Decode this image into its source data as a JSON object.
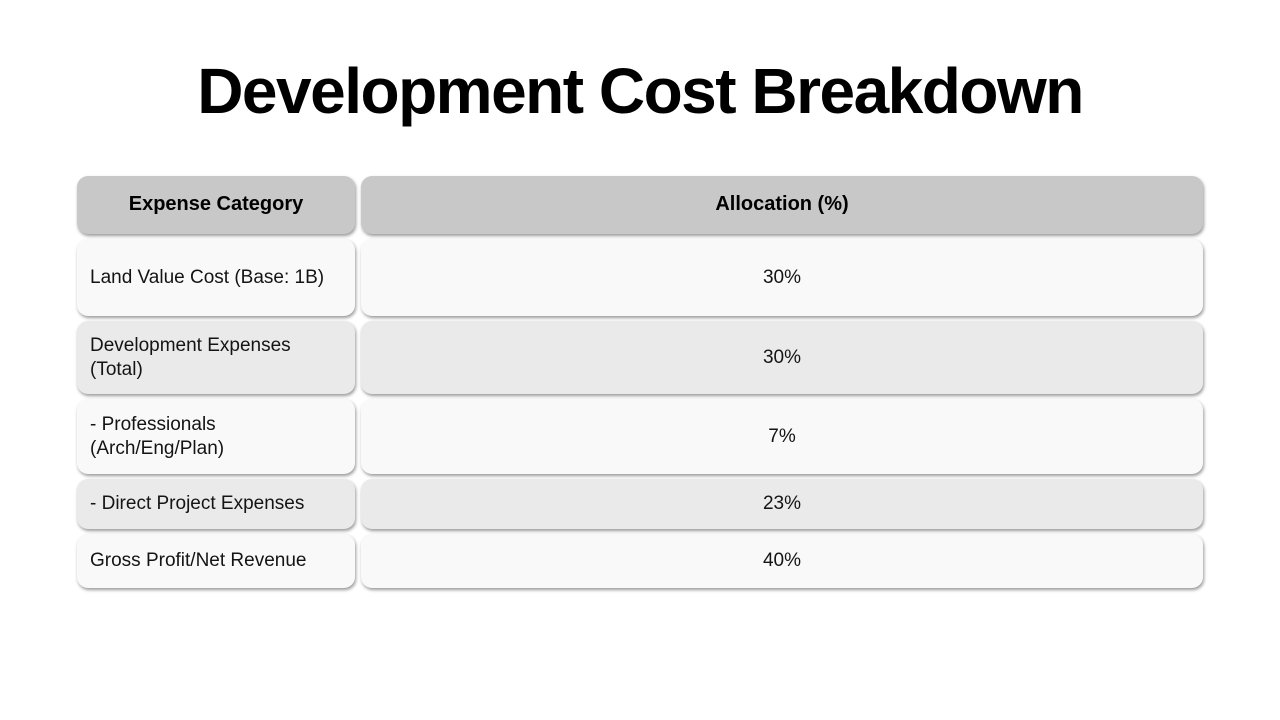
{
  "title": "Development Cost Breakdown",
  "table": {
    "columns": [
      "Expense Category",
      "Allocation (%)"
    ],
    "rows": [
      {
        "category": "Land Value Cost (Base: 1B)",
        "allocation": "30%"
      },
      {
        "category": "Development Expenses\n(Total)",
        "allocation": "30%"
      },
      {
        "category": "- Professionals\n(Arch/Eng/Plan)",
        "allocation": "7%"
      },
      {
        "category": "- Direct Project Expenses",
        "allocation": "23%"
      },
      {
        "category": "Gross Profit/Net Revenue",
        "allocation": "40%"
      }
    ],
    "colors": {
      "header_bg": "#c8c8c8",
      "row_odd_bg": "#f9f9f9",
      "row_even_bg": "#eaeaea",
      "text": "#141414",
      "page_bg": "#ffffff"
    }
  },
  "chart_data": {
    "type": "table",
    "title": "Development Cost Breakdown",
    "columns": [
      "Expense Category",
      "Allocation (%)"
    ],
    "categories": [
      "Land Value Cost (Base: 1B)",
      "Development Expenses (Total)",
      "- Professionals (Arch/Eng/Plan)",
      "- Direct Project Expenses",
      "Gross Profit/Net Revenue"
    ],
    "values": [
      30,
      30,
      7,
      23,
      40
    ],
    "unit": "%"
  }
}
